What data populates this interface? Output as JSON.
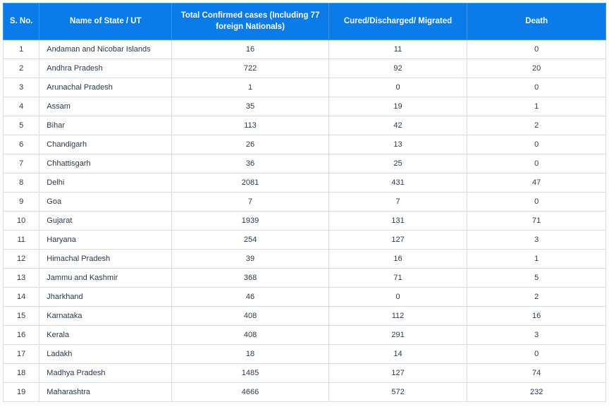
{
  "table": {
    "columns": [
      {
        "key": "sno",
        "label": "S. No.",
        "class": "col-sno"
      },
      {
        "key": "name",
        "label": "Name of State / UT",
        "class": "col-name"
      },
      {
        "key": "conf",
        "label": "Total Confirmed cases (Including 77 foreign Nationals)",
        "class": "col-conf"
      },
      {
        "key": "cured",
        "label": "Cured/Discharged/ Migrated",
        "class": "col-cured"
      },
      {
        "key": "death",
        "label": "Death",
        "class": "col-death"
      }
    ],
    "rows": [
      {
        "sno": "1",
        "name": "Andaman and Nicobar Islands",
        "conf": "16",
        "cured": "11",
        "death": "0"
      },
      {
        "sno": "2",
        "name": "Andhra Pradesh",
        "conf": "722",
        "cured": "92",
        "death": "20"
      },
      {
        "sno": "3",
        "name": "Arunachal Pradesh",
        "conf": "1",
        "cured": "0",
        "death": "0"
      },
      {
        "sno": "4",
        "name": "Assam",
        "conf": "35",
        "cured": "19",
        "death": "1"
      },
      {
        "sno": "5",
        "name": "Bihar",
        "conf": "113",
        "cured": "42",
        "death": "2"
      },
      {
        "sno": "6",
        "name": "Chandigarh",
        "conf": "26",
        "cured": "13",
        "death": "0"
      },
      {
        "sno": "7",
        "name": "Chhattisgarh",
        "conf": "36",
        "cured": "25",
        "death": "0"
      },
      {
        "sno": "8",
        "name": "Delhi",
        "conf": "2081",
        "cured": "431",
        "death": "47"
      },
      {
        "sno": "9",
        "name": "Goa",
        "conf": "7",
        "cured": "7",
        "death": "0"
      },
      {
        "sno": "10",
        "name": "Gujarat",
        "conf": "1939",
        "cured": "131",
        "death": "71"
      },
      {
        "sno": "11",
        "name": "Haryana",
        "conf": "254",
        "cured": "127",
        "death": "3"
      },
      {
        "sno": "12",
        "name": "Himachal Pradesh",
        "conf": "39",
        "cured": "16",
        "death": "1"
      },
      {
        "sno": "13",
        "name": "Jammu and Kashmir",
        "conf": "368",
        "cured": "71",
        "death": "5"
      },
      {
        "sno": "14",
        "name": "Jharkhand",
        "conf": "46",
        "cured": "0",
        "death": "2"
      },
      {
        "sno": "15",
        "name": "Karnataka",
        "conf": "408",
        "cured": "112",
        "death": "16"
      },
      {
        "sno": "16",
        "name": "Kerala",
        "conf": "408",
        "cured": "291",
        "death": "3"
      },
      {
        "sno": "17",
        "name": "Ladakh",
        "conf": "18",
        "cured": "14",
        "death": "0"
      },
      {
        "sno": "18",
        "name": "Madhya Pradesh",
        "conf": "1485",
        "cured": "127",
        "death": "74"
      },
      {
        "sno": "19",
        "name": "Maharashtra",
        "conf": "4666",
        "cured": "572",
        "death": "232"
      }
    ],
    "style": {
      "header_bg": "#0a7be8",
      "header_fg": "#ffffff",
      "header_border": "#3a95ec",
      "cell_border": "#d7dde3",
      "cell_fg": "#2a3a4a",
      "header_fontsize_pt": 11.5,
      "cell_fontsize_pt": 11,
      "name_align": "left",
      "numeric_align": "center"
    }
  }
}
